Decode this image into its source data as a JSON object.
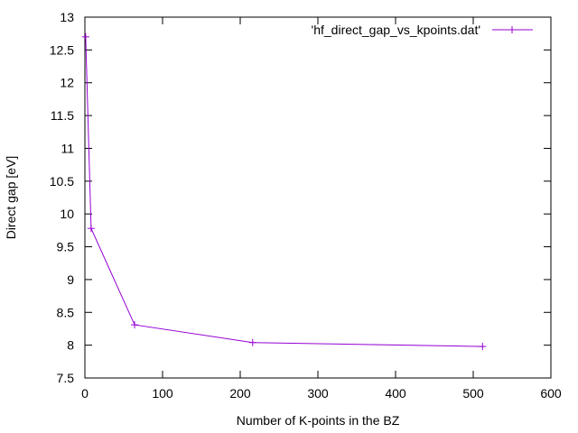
{
  "chart_data": {
    "type": "line",
    "title": "",
    "xlabel": "Number of K-points in the BZ",
    "ylabel": "Direct gap [eV]",
    "xlim": [
      0,
      600
    ],
    "ylim": [
      7.5,
      13
    ],
    "xticks": [
      0,
      100,
      200,
      300,
      400,
      500,
      600
    ],
    "xtick_labels": [
      "0",
      "100",
      "200",
      "300",
      "400",
      "500",
      "600"
    ],
    "yticks": [
      7.5,
      8,
      8.5,
      9,
      9.5,
      10,
      10.5,
      11,
      11.5,
      12,
      12.5,
      13
    ],
    "ytick_labels": [
      "7.5",
      "8",
      "8.5",
      "9",
      "9.5",
      "10",
      "10.5",
      "11",
      "11.5",
      "12",
      "12.5",
      "13"
    ],
    "grid": false,
    "legend_position": "top-right",
    "series": [
      {
        "name": "'hf_direct_gap_vs_kpoints.dat'",
        "color": "#9400d3",
        "marker": "plus",
        "x": [
          1,
          8,
          64,
          216,
          512
        ],
        "y": [
          12.7,
          9.78,
          8.31,
          8.04,
          7.98
        ]
      }
    ]
  }
}
